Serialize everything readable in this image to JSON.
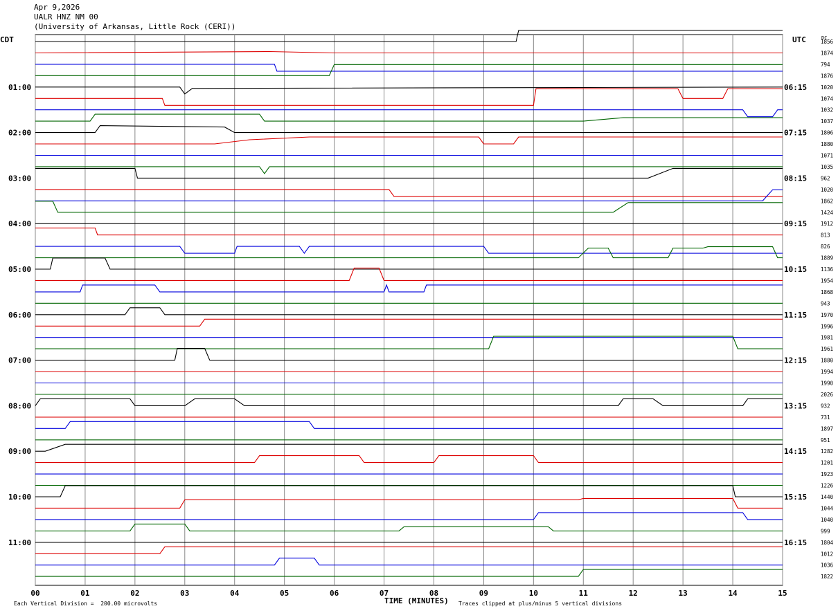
{
  "header": {
    "date": "Apr 9,2026",
    "station": "UALR HNZ NM 00",
    "institution": "(University of Arkansas, Little Rock (CERI))"
  },
  "chart_data": {
    "type": "line",
    "title": "Apr 9,2026",
    "xlabel": "TIME (MINUTES)",
    "left_axis_title": "CDT",
    "right_axis_title": "UTC",
    "dc_title": "DC",
    "xlim": [
      0,
      15
    ],
    "x_ticks": [
      "00",
      "01",
      "02",
      "03",
      "04",
      "05",
      "06",
      "07",
      "08",
      "09",
      "10",
      "11",
      "12",
      "13",
      "14",
      "15"
    ],
    "trace_colors": [
      "#000000",
      "#dd0000",
      "#0000dd",
      "#006600"
    ],
    "grid": true,
    "rows": [
      {
        "cdt": "",
        "utc": "",
        "dc": "1856"
      },
      {
        "cdt": "",
        "utc": "",
        "dc": "1874"
      },
      {
        "cdt": "",
        "utc": "",
        "dc": "794"
      },
      {
        "cdt": "",
        "utc": "",
        "dc": "1876"
      },
      {
        "cdt": "01:00",
        "utc": "06:15",
        "dc": "1020"
      },
      {
        "cdt": "",
        "utc": "",
        "dc": "1074"
      },
      {
        "cdt": "",
        "utc": "",
        "dc": "1032"
      },
      {
        "cdt": "",
        "utc": "",
        "dc": "1037"
      },
      {
        "cdt": "02:00",
        "utc": "07:15",
        "dc": "1806"
      },
      {
        "cdt": "",
        "utc": "",
        "dc": "1880"
      },
      {
        "cdt": "",
        "utc": "",
        "dc": "1071"
      },
      {
        "cdt": "",
        "utc": "",
        "dc": "1035"
      },
      {
        "cdt": "03:00",
        "utc": "08:15",
        "dc": "962"
      },
      {
        "cdt": "",
        "utc": "",
        "dc": "1020"
      },
      {
        "cdt": "",
        "utc": "",
        "dc": "1862"
      },
      {
        "cdt": "",
        "utc": "",
        "dc": "1424"
      },
      {
        "cdt": "04:00",
        "utc": "09:15",
        "dc": "1912"
      },
      {
        "cdt": "",
        "utc": "",
        "dc": "813"
      },
      {
        "cdt": "",
        "utc": "",
        "dc": "826"
      },
      {
        "cdt": "",
        "utc": "",
        "dc": "1889"
      },
      {
        "cdt": "05:00",
        "utc": "10:15",
        "dc": "1136"
      },
      {
        "cdt": "",
        "utc": "",
        "dc": "1954"
      },
      {
        "cdt": "",
        "utc": "",
        "dc": "1868"
      },
      {
        "cdt": "",
        "utc": "",
        "dc": "943"
      },
      {
        "cdt": "06:00",
        "utc": "11:15",
        "dc": "1970"
      },
      {
        "cdt": "",
        "utc": "",
        "dc": "1996"
      },
      {
        "cdt": "",
        "utc": "",
        "dc": "1981"
      },
      {
        "cdt": "",
        "utc": "",
        "dc": "1961"
      },
      {
        "cdt": "07:00",
        "utc": "12:15",
        "dc": "1880"
      },
      {
        "cdt": "",
        "utc": "",
        "dc": "1994"
      },
      {
        "cdt": "",
        "utc": "",
        "dc": "1990"
      },
      {
        "cdt": "",
        "utc": "",
        "dc": "2026"
      },
      {
        "cdt": "08:00",
        "utc": "13:15",
        "dc": "932"
      },
      {
        "cdt": "",
        "utc": "",
        "dc": "731"
      },
      {
        "cdt": "",
        "utc": "",
        "dc": "1897"
      },
      {
        "cdt": "",
        "utc": "",
        "dc": "951"
      },
      {
        "cdt": "09:00",
        "utc": "14:15",
        "dc": "1282"
      },
      {
        "cdt": "",
        "utc": "",
        "dc": "1201"
      },
      {
        "cdt": "",
        "utc": "",
        "dc": "1923"
      },
      {
        "cdt": "",
        "utc": "",
        "dc": "1226"
      },
      {
        "cdt": "10:00",
        "utc": "15:15",
        "dc": "1440"
      },
      {
        "cdt": "",
        "utc": "",
        "dc": "1044"
      },
      {
        "cdt": "",
        "utc": "",
        "dc": "1040"
      },
      {
        "cdt": "",
        "utc": "",
        "dc": "999"
      },
      {
        "cdt": "11:00",
        "utc": "16:15",
        "dc": "1804"
      },
      {
        "cdt": "",
        "utc": "",
        "dc": "1012"
      },
      {
        "cdt": "",
        "utc": "",
        "dc": "1036"
      },
      {
        "cdt": "",
        "utc": "",
        "dc": "1822"
      }
    ],
    "traces": [
      [
        [
          0,
          0
        ],
        [
          9.65,
          0
        ],
        [
          9.7,
          -1.6
        ],
        [
          15,
          -1.6
        ]
      ],
      [
        [
          0,
          0
        ],
        [
          4.7,
          -0.2
        ],
        [
          6,
          0
        ],
        [
          7,
          0
        ],
        [
          8,
          0
        ],
        [
          15,
          0
        ]
      ],
      [
        [
          0,
          0
        ],
        [
          4.8,
          0
        ],
        [
          4.85,
          1
        ],
        [
          15,
          1
        ]
      ],
      [
        [
          0,
          0
        ],
        [
          5.9,
          0
        ],
        [
          6,
          -1.6
        ],
        [
          15,
          -1.6
        ]
      ],
      [
        [
          0,
          0
        ],
        [
          2.9,
          0
        ],
        [
          3,
          1
        ],
        [
          3.15,
          0.2
        ],
        [
          15,
          0
        ]
      ],
      [
        [
          0,
          0
        ],
        [
          2.55,
          0
        ],
        [
          2.6,
          1
        ],
        [
          10,
          1
        ],
        [
          10.05,
          -1.4
        ],
        [
          12.9,
          -1.4
        ],
        [
          13.0,
          0
        ],
        [
          13.8,
          0
        ],
        [
          13.9,
          -1.4
        ],
        [
          15,
          -1.4
        ]
      ],
      [
        [
          0,
          0
        ],
        [
          14.2,
          0
        ],
        [
          14.3,
          1
        ],
        [
          14.8,
          1
        ],
        [
          14.9,
          0
        ],
        [
          15,
          0
        ]
      ],
      [
        [
          0,
          0
        ],
        [
          1.1,
          0
        ],
        [
          1.2,
          -1
        ],
        [
          4.5,
          -1
        ],
        [
          4.6,
          0
        ],
        [
          11,
          0
        ],
        [
          11.8,
          -0.5
        ],
        [
          15,
          -0.5
        ]
      ],
      [
        [
          0,
          0
        ],
        [
          1.2,
          0
        ],
        [
          1.3,
          -1
        ],
        [
          3.8,
          -0.8
        ],
        [
          4,
          0
        ],
        [
          9,
          0
        ],
        [
          9.6,
          0
        ],
        [
          15,
          0
        ]
      ],
      [
        [
          0,
          0
        ],
        [
          3.6,
          0
        ],
        [
          4.3,
          -0.6
        ],
        [
          5.5,
          -1
        ],
        [
          8.9,
          -1
        ],
        [
          9.0,
          0
        ],
        [
          9.6,
          0
        ],
        [
          9.7,
          -1
        ],
        [
          15,
          -1
        ]
      ],
      [
        [
          0,
          0
        ],
        [
          15,
          0
        ]
      ],
      [
        [
          0,
          0
        ],
        [
          4.5,
          0
        ],
        [
          4.6,
          1
        ],
        [
          4.7,
          0
        ],
        [
          15,
          0
        ]
      ],
      [
        [
          0,
          -1.4
        ],
        [
          2,
          -1.4
        ],
        [
          2.05,
          0
        ],
        [
          12.3,
          0
        ],
        [
          12.8,
          -1.4
        ],
        [
          15,
          -1.4
        ]
      ],
      [
        [
          0,
          0
        ],
        [
          7.1,
          0
        ],
        [
          7.2,
          1
        ],
        [
          15,
          1
        ]
      ],
      [
        [
          0,
          0
        ],
        [
          14.6,
          0
        ],
        [
          14.8,
          -1.6
        ],
        [
          15,
          -1.6
        ]
      ],
      [
        [
          0,
          -1.6
        ],
        [
          0.35,
          -1.6
        ],
        [
          0.45,
          0
        ],
        [
          11.6,
          0
        ],
        [
          11.9,
          -1.4
        ],
        [
          15,
          -1.4
        ]
      ],
      [
        [
          0,
          0
        ],
        [
          15,
          0
        ]
      ],
      [
        [
          0,
          -1
        ],
        [
          1.2,
          -1
        ],
        [
          1.25,
          0
        ],
        [
          15,
          0
        ]
      ],
      [
        [
          0,
          0
        ],
        [
          2.9,
          0
        ],
        [
          3,
          1
        ],
        [
          4,
          1
        ],
        [
          4.05,
          0
        ],
        [
          5.3,
          0
        ],
        [
          5.4,
          1
        ],
        [
          5.5,
          0
        ],
        [
          9,
          0
        ],
        [
          9.1,
          1
        ],
        [
          15,
          1
        ]
      ],
      [
        [
          0,
          0
        ],
        [
          10.9,
          0
        ],
        [
          11.1,
          -1.4
        ],
        [
          11.5,
          -1.4
        ],
        [
          11.6,
          0
        ],
        [
          12.7,
          0
        ],
        [
          12.8,
          -1.4
        ],
        [
          13.4,
          -1.4
        ],
        [
          13.5,
          -1.6
        ],
        [
          14.8,
          -1.6
        ],
        [
          14.9,
          0
        ],
        [
          15,
          0
        ]
      ],
      [
        [
          0,
          0
        ],
        [
          0.3,
          0
        ],
        [
          0.35,
          -1.6
        ],
        [
          1.4,
          -1.6
        ],
        [
          1.5,
          0
        ],
        [
          15,
          0
        ]
      ],
      [
        [
          0,
          0
        ],
        [
          6.3,
          0
        ],
        [
          6.4,
          -1.8
        ],
        [
          6.9,
          -1.8
        ],
        [
          7,
          0
        ],
        [
          15,
          0
        ]
      ],
      [
        [
          0,
          0
        ],
        [
          0.9,
          0
        ],
        [
          0.95,
          -1
        ],
        [
          2.4,
          -1
        ],
        [
          2.5,
          0
        ],
        [
          7.0,
          0
        ],
        [
          7.05,
          -1
        ],
        [
          7.1,
          0
        ],
        [
          7.8,
          0
        ],
        [
          7.85,
          -1
        ],
        [
          15,
          -1
        ]
      ],
      [
        [
          0,
          0
        ],
        [
          15,
          0
        ]
      ],
      [
        [
          0,
          0
        ],
        [
          1.8,
          0
        ],
        [
          1.9,
          -1
        ],
        [
          2.5,
          -1
        ],
        [
          2.6,
          0
        ],
        [
          15,
          0
        ]
      ],
      [
        [
          0,
          0
        ],
        [
          3.3,
          0
        ],
        [
          3.4,
          -1
        ],
        [
          15,
          -1
        ]
      ],
      [
        [
          0,
          0
        ],
        [
          15,
          0
        ]
      ],
      [
        [
          0,
          0
        ],
        [
          9.1,
          0
        ],
        [
          9.2,
          -1.8
        ],
        [
          14.0,
          -1.8
        ],
        [
          14.1,
          0
        ],
        [
          15,
          0
        ]
      ],
      [
        [
          0,
          0
        ],
        [
          2.8,
          0
        ],
        [
          2.85,
          -1.7
        ],
        [
          3.4,
          -1.7
        ],
        [
          3.5,
          0
        ],
        [
          15,
          0
        ]
      ],
      [
        [
          0,
          0
        ],
        [
          15,
          0
        ]
      ],
      [
        [
          0,
          0
        ],
        [
          15,
          0
        ]
      ],
      [
        [
          0,
          0
        ],
        [
          15,
          0
        ]
      ],
      [
        [
          0,
          0
        ],
        [
          0.1,
          -1
        ],
        [
          1.9,
          -1
        ],
        [
          2,
          0
        ],
        [
          3.0,
          0
        ],
        [
          3.2,
          -1
        ],
        [
          4.0,
          -1
        ],
        [
          4.2,
          0
        ],
        [
          11.7,
          0
        ],
        [
          11.8,
          -1
        ],
        [
          12.4,
          -1
        ],
        [
          12.6,
          0
        ],
        [
          14.2,
          0
        ],
        [
          14.3,
          -1
        ],
        [
          15,
          -1
        ]
      ],
      [
        [
          0,
          0
        ],
        [
          2,
          0
        ],
        [
          5.5,
          0
        ],
        [
          15,
          0
        ]
      ],
      [
        [
          0,
          0
        ],
        [
          0.6,
          0
        ],
        [
          0.7,
          -1
        ],
        [
          5.5,
          -1
        ],
        [
          5.6,
          0
        ],
        [
          15,
          0
        ]
      ],
      [
        [
          0,
          0
        ],
        [
          15,
          0
        ]
      ],
      [
        [
          0,
          0
        ],
        [
          0.2,
          0
        ],
        [
          0.6,
          -1
        ],
        [
          15,
          -1
        ]
      ],
      [
        [
          0,
          0
        ],
        [
          4.4,
          0
        ],
        [
          4.5,
          -1
        ],
        [
          6.5,
          -1
        ],
        [
          6.6,
          0
        ],
        [
          8.0,
          0
        ],
        [
          8.1,
          -1
        ],
        [
          8.8,
          -1
        ],
        [
          9.1,
          -1
        ],
        [
          10,
          -1
        ],
        [
          10.1,
          0
        ],
        [
          15,
          0
        ]
      ],
      [
        [
          0,
          0
        ],
        [
          15,
          0
        ]
      ],
      [
        [
          0,
          0
        ],
        [
          15,
          0
        ]
      ],
      [
        [
          0,
          0
        ],
        [
          0.5,
          0
        ],
        [
          0.6,
          -1.6
        ],
        [
          14,
          -1.6
        ],
        [
          14.05,
          0
        ],
        [
          15,
          0
        ]
      ],
      [
        [
          0,
          0
        ],
        [
          2.9,
          0
        ],
        [
          3,
          -1.2
        ],
        [
          10.9,
          -1.2
        ],
        [
          11,
          -1.4
        ],
        [
          14,
          -1.4
        ],
        [
          14.1,
          0
        ],
        [
          15,
          0
        ]
      ],
      [
        [
          0,
          0
        ],
        [
          10,
          0
        ],
        [
          10.1,
          -1
        ],
        [
          14.2,
          -1
        ],
        [
          14.3,
          0
        ],
        [
          15,
          0
        ]
      ],
      [
        [
          0,
          0
        ],
        [
          1.9,
          0
        ],
        [
          2,
          -1
        ],
        [
          3,
          -1
        ],
        [
          3.1,
          0
        ],
        [
          7.3,
          0
        ],
        [
          7.4,
          -0.6
        ],
        [
          10.3,
          -0.6
        ],
        [
          10.4,
          0
        ],
        [
          15,
          0
        ]
      ],
      [
        [
          0,
          0
        ],
        [
          15,
          0
        ]
      ],
      [
        [
          0,
          0
        ],
        [
          2.5,
          0
        ],
        [
          2.6,
          -1
        ],
        [
          15,
          -1
        ]
      ],
      [
        [
          0,
          0
        ],
        [
          4.8,
          0
        ],
        [
          4.9,
          -1
        ],
        [
          5.6,
          -1
        ],
        [
          5.7,
          0
        ],
        [
          15,
          0
        ]
      ],
      [
        [
          0,
          0
        ],
        [
          10.9,
          0
        ],
        [
          11,
          -1
        ],
        [
          15,
          -1
        ]
      ]
    ]
  },
  "footer": {
    "vertical_division": "Each Vertical Division =  200.00 microvolts",
    "clip_note": "Traces clipped at plus/minus 5 vertical divisions"
  }
}
